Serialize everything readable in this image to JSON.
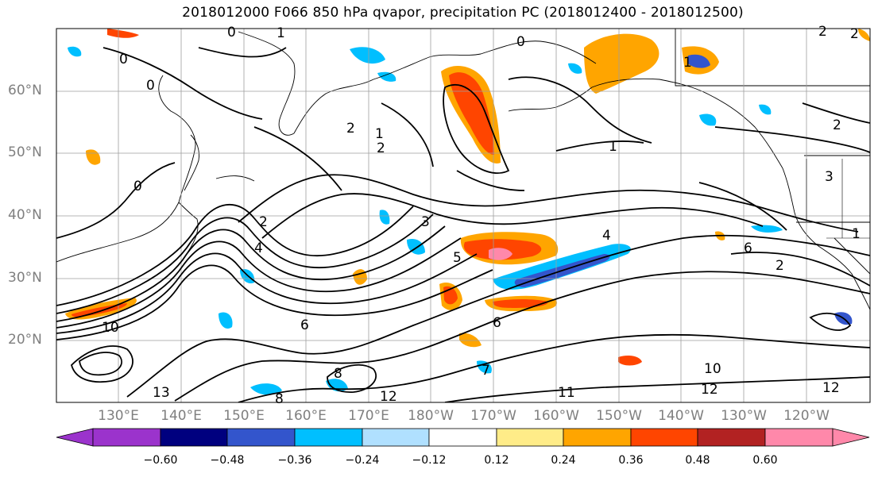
{
  "title": "2018012000 F066 850 hPa qvapor, precipitation PC (2018012400 - 2018012500)",
  "lat_labels": [
    "60°N",
    "50°N",
    "40°N",
    "30°N",
    "20°N"
  ],
  "lon_labels": [
    "130°E",
    "140°E",
    "150°E",
    "160°E",
    "170°E",
    "180°W",
    "170°W",
    "160°W",
    "150°W",
    "140°W",
    "130°W",
    "120°W"
  ],
  "colorbar": {
    "colors": [
      "#9b33cc",
      "#00007f",
      "#3355cc",
      "#00bfff",
      "#b0e0ff",
      "#ffffff",
      "#ffec88",
      "#ffa500",
      "#ff4500",
      "#b22222",
      "#ff88aa"
    ],
    "tick_labels": [
      "−0.60",
      "−0.48",
      "−0.36",
      "−0.24",
      "−0.12",
      "0.12",
      "0.24",
      "0.36",
      "0.48",
      "0.60"
    ]
  },
  "contour_labels": [
    "1",
    "0",
    "0",
    "1",
    "2",
    "1",
    "2",
    "1",
    "0",
    "2",
    "2",
    "2",
    "0",
    "0",
    "2",
    "3",
    "4",
    "4",
    "5",
    "6",
    "6",
    "6",
    "10",
    "13",
    "8",
    "8",
    "12",
    "11",
    "12",
    "10",
    "12",
    "2",
    "3",
    "1",
    "7"
  ]
}
